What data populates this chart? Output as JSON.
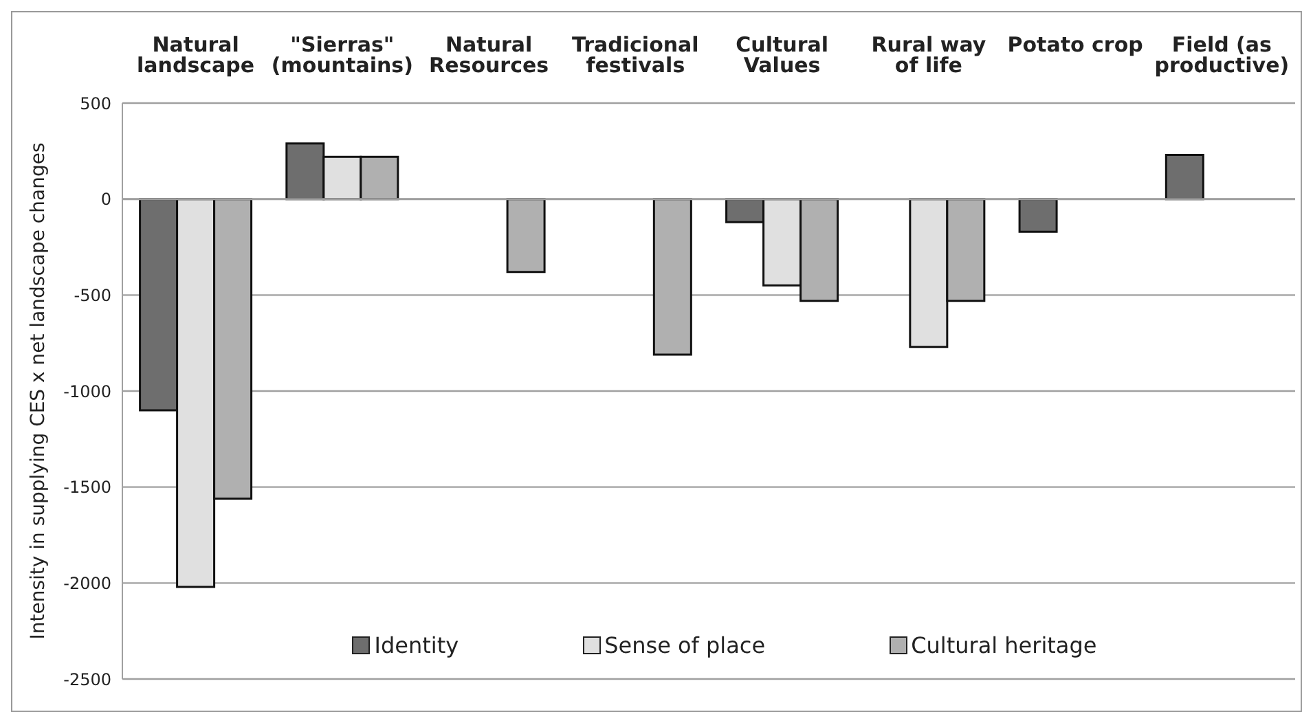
{
  "chart_data": {
    "type": "bar",
    "ylabel": "Intensity in supplying CES x net landscape changes",
    "categories": [
      "Natural landscape",
      "\"Sierras\" (mountains)",
      "Natural Resources",
      "Tradicional festivals",
      "Cultural Values",
      "Rural way of life",
      "Potato crop",
      "Field (as productive)"
    ],
    "series": [
      {
        "name": "Identity",
        "color": "#6e6e6e",
        "values": [
          -1100,
          290,
          null,
          null,
          -120,
          null,
          -170,
          230
        ]
      },
      {
        "name": "Sense of place",
        "color": "#e0e0e0",
        "values": [
          -2020,
          220,
          null,
          null,
          -450,
          -770,
          null,
          null
        ]
      },
      {
        "name": "Cultural heritage",
        "color": "#b0b0b0",
        "values": [
          -1560,
          220,
          -380,
          -810,
          -530,
          -530,
          null,
          null
        ]
      }
    ],
    "ylim": [
      -2500,
      500
    ],
    "yticks": [
      -2500,
      -2000,
      -1500,
      -1000,
      -500,
      0,
      500
    ],
    "grid": "y",
    "legend": "bottom"
  }
}
